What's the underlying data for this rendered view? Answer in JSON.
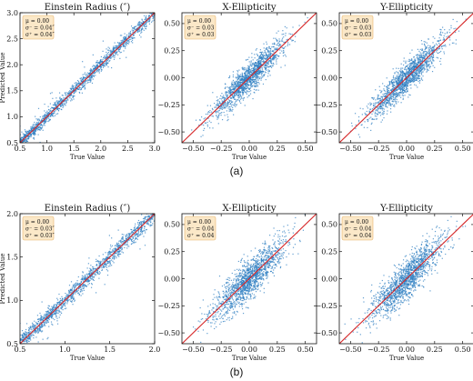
{
  "figure": {
    "captions": [
      "(a)",
      "(b)"
    ]
  },
  "colors": {
    "points": "#2f7fc1",
    "line": "#d62728",
    "stat_box_fill": "#fbe8c8",
    "stat_box_edge": "#e8b46a"
  },
  "chart_data": [
    {
      "type": "scatter",
      "row": 0,
      "col": 0,
      "title": "Einstein Radius (″)",
      "xlabel": "True Value",
      "ylabel": "Predicted Value",
      "xlim": [
        0.5,
        3.0
      ],
      "ylim": [
        0.5,
        3.0
      ],
      "xticks": [
        "0.5",
        "1.0",
        "1.5",
        "2.0",
        "2.5",
        "3.0"
      ],
      "yticks": [
        "0.5",
        "1.0",
        "1.5",
        "2.0",
        "2.5",
        "3.0"
      ],
      "stats": [
        "μ = 0.00",
        "σ⁻ = 0.04″",
        "σ⁺ = 0.04″"
      ],
      "reference_line": "y = x",
      "series": [
        {
          "spread": 0.04,
          "point_count": 1500
        }
      ]
    },
    {
      "type": "scatter",
      "row": 0,
      "col": 1,
      "title": "X-Ellipticity",
      "xlabel": "True Value",
      "ylabel": "",
      "xlim": [
        -0.6,
        0.6
      ],
      "ylim": [
        -0.6,
        0.6
      ],
      "xticks": [
        "−0.50",
        "−0.25",
        "0.00",
        "0.25",
        "0.50"
      ],
      "yticks": [
        "−0.50",
        "−0.25",
        "0.00",
        "0.25",
        "0.50"
      ],
      "stats": [
        "μ = 0.00",
        "σ⁻ = 0.03",
        "σ⁺ = 0.03"
      ],
      "reference_line": "y = x",
      "series": [
        {
          "spread": 0.03,
          "point_count": 1500
        }
      ]
    },
    {
      "type": "scatter",
      "row": 0,
      "col": 2,
      "title": "Y-Ellipticity",
      "xlabel": "True Value",
      "ylabel": "",
      "xlim": [
        -0.6,
        0.6
      ],
      "ylim": [
        -0.6,
        0.6
      ],
      "xticks": [
        "−0.50",
        "−0.25",
        "0.00",
        "0.25",
        "0.50"
      ],
      "yticks": [
        "−0.50",
        "−0.25",
        "0.00",
        "0.25",
        "0.50"
      ],
      "stats": [
        "μ = 0.00",
        "σ⁻ = 0.03",
        "σ⁺ = 0.03"
      ],
      "reference_line": "y = x",
      "series": [
        {
          "spread": 0.03,
          "point_count": 1500
        }
      ]
    },
    {
      "type": "scatter",
      "row": 1,
      "col": 0,
      "title": "Einstein Radius (″)",
      "xlabel": "True Value",
      "ylabel": "Predicted Value",
      "xlim": [
        0.5,
        2.0
      ],
      "ylim": [
        0.5,
        2.0
      ],
      "xticks": [
        "0.5",
        "1.0",
        "1.5",
        "2.0"
      ],
      "yticks": [
        "0.5",
        "1.0",
        "1.5",
        "2.0"
      ],
      "stats": [
        "μ = 0.00",
        "σ⁻ = 0.03″",
        "σ⁺ = 0.03″"
      ],
      "reference_line": "y = x",
      "series": [
        {
          "spread": 0.03,
          "point_count": 1500
        }
      ]
    },
    {
      "type": "scatter",
      "row": 1,
      "col": 1,
      "title": "X-Ellipticity",
      "xlabel": "True Value",
      "ylabel": "",
      "xlim": [
        -0.6,
        0.6
      ],
      "ylim": [
        -0.6,
        0.6
      ],
      "xticks": [
        "−0.50",
        "−0.25",
        "0.00",
        "0.25",
        "0.50"
      ],
      "yticks": [
        "−0.50",
        "−0.25",
        "0.00",
        "0.25",
        "0.50"
      ],
      "stats": [
        "μ = 0.00",
        "σ⁻ = 0.04",
        "σ⁺ = 0.04"
      ],
      "reference_line": "y = x",
      "series": [
        {
          "spread": 0.04,
          "point_count": 1500
        }
      ]
    },
    {
      "type": "scatter",
      "row": 1,
      "col": 2,
      "title": "Y-Ellipticity",
      "xlabel": "True Value",
      "ylabel": "",
      "xlim": [
        -0.6,
        0.6
      ],
      "ylim": [
        -0.6,
        0.6
      ],
      "xticks": [
        "−0.50",
        "−0.25",
        "0.00",
        "0.25",
        "0.50"
      ],
      "yticks": [
        "−0.50",
        "−0.25",
        "0.00",
        "0.25",
        "0.50"
      ],
      "stats": [
        "μ = 0.00",
        "σ⁻ = 0.04",
        "σ⁺ = 0.04"
      ],
      "reference_line": "y = x",
      "series": [
        {
          "spread": 0.04,
          "point_count": 1500
        }
      ]
    }
  ]
}
